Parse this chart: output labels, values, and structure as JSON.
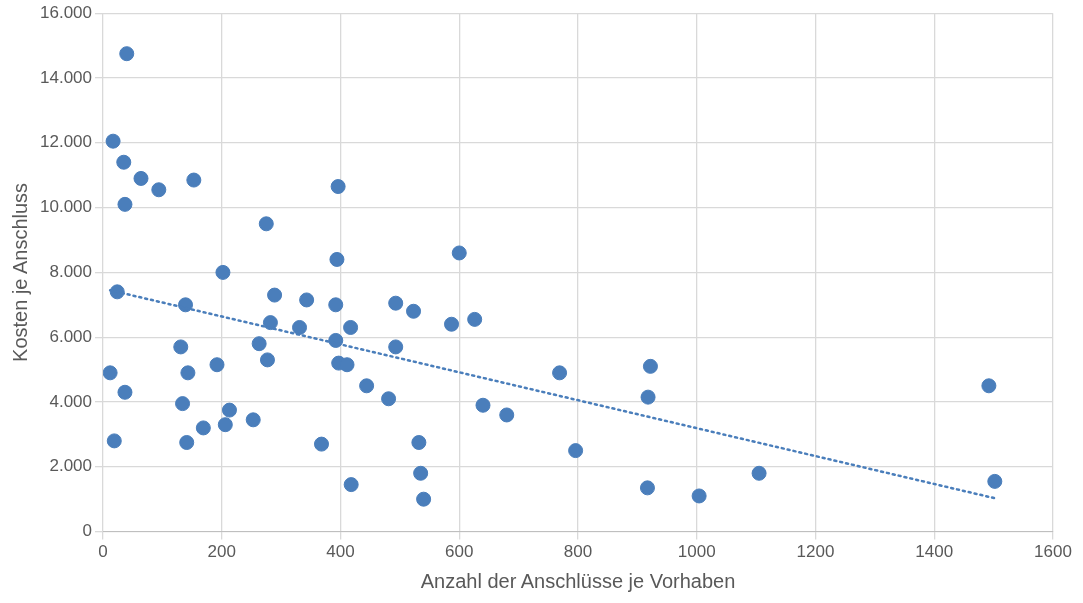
{
  "chart_data": {
    "type": "scatter",
    "xlabel": "Anzahl der Anschlüsse je Vorhaben",
    "ylabel": "Kosten je Anschluss",
    "xlim": [
      0,
      1600
    ],
    "xticks": [
      0,
      200,
      400,
      600,
      800,
      1000,
      1200,
      1400,
      1600
    ],
    "ylim": [
      0,
      16000
    ],
    "yticks": [
      0,
      {
        "value": 2000,
        "label": "2.000"
      },
      {
        "value": 4000,
        "label": "4.000"
      },
      {
        "value": 6000,
        "label": "6.000"
      },
      {
        "value": 8000,
        "label": "8.000"
      },
      {
        "value": 10000,
        "label": "10.000"
      },
      {
        "value": 12000,
        "label": "12.000"
      },
      {
        "value": 14000,
        "label": "14.000"
      },
      {
        "value": 16000,
        "label": "16.000"
      }
    ],
    "grid": true,
    "legend": false,
    "marker": "circle",
    "series": [
      {
        "color": "#4a7ebb",
        "x": [
          12,
          17,
          40,
          35,
          37,
          64,
          94,
          153,
          24,
          19,
          37,
          139,
          131,
          143,
          134,
          141,
          169,
          192,
          202,
          206,
          213,
          253,
          263,
          275,
          277,
          282,
          289,
          331,
          343,
          368,
          392,
          392,
          394,
          396,
          397,
          411,
          417,
          418,
          444,
          481,
          493,
          493,
          523,
          532,
          535,
          540,
          587,
          600,
          626,
          640,
          680,
          769,
          796,
          917,
          918,
          922,
          1004,
          1105,
          1492,
          1502
        ],
        "values": [
          4900,
          12050,
          14750,
          11400,
          10100,
          10900,
          10550,
          10850,
          7400,
          2800,
          4300,
          7000,
          5700,
          4900,
          3950,
          2750,
          3200,
          5150,
          8000,
          3300,
          3750,
          3450,
          5800,
          9500,
          5300,
          6450,
          7300,
          6300,
          7150,
          2700,
          5900,
          7000,
          8400,
          10650,
          5200,
          5150,
          6300,
          1450,
          4500,
          4100,
          7050,
          5700,
          6800,
          2750,
          1800,
          1000,
          6400,
          8600,
          6550,
          3900,
          3600,
          4900,
          2500,
          1350,
          4150,
          5100,
          1100,
          1800,
          4500,
          1550
        ]
      },
      {
        "type": "line",
        "color": "#4a7ebb",
        "line_style": "dotted",
        "marker": "none",
        "x": [
          12,
          1502
        ],
        "values": [
          7450,
          1030
        ]
      }
    ]
  }
}
